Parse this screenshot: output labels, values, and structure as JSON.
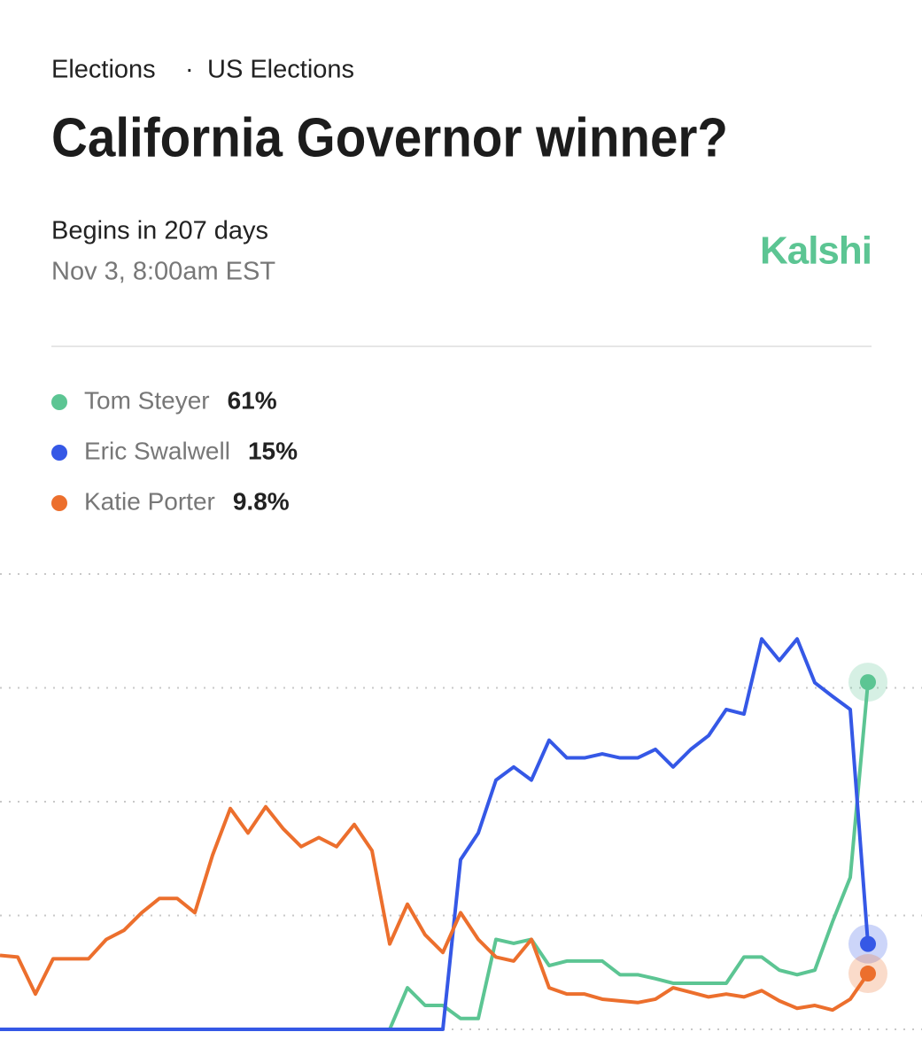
{
  "header": {
    "breadcrumb": [
      "Elections",
      "US Elections"
    ],
    "title": "California Governor winner?"
  },
  "schedule": {
    "begins": "Begins in 207 days",
    "date": "Nov 3, 8:00am EST"
  },
  "brand": "Kalshi",
  "chart_data": {
    "type": "line",
    "ylim": [
      0,
      80
    ],
    "yticks": [
      0,
      20,
      40,
      60,
      80
    ],
    "grid": true,
    "series": [
      {
        "name": "Tom Steyer",
        "color": "#5cc593",
        "last_label": "61%",
        "values": [
          0,
          0,
          0,
          0,
          0,
          0,
          0,
          0,
          0,
          0,
          0,
          0,
          0,
          0,
          0,
          0,
          0,
          0,
          0,
          0,
          0,
          0,
          0,
          7.3,
          4.2,
          4.2,
          1.9,
          1.9,
          15.8,
          15.1,
          15.8,
          11.2,
          12,
          12,
          12,
          9.6,
          9.6,
          8.9,
          8.1,
          8.1,
          8.1,
          8.1,
          12.7,
          12.7,
          10.4,
          9.6,
          10.4,
          18.9,
          26.7,
          61
        ]
      },
      {
        "name": "Eric Swalwell",
        "color": "#3558e6",
        "last_label": "15%",
        "values": [
          0,
          0,
          0,
          0,
          0,
          0,
          0,
          0,
          0,
          0,
          0,
          0,
          0,
          0,
          0,
          0,
          0,
          0,
          0,
          0,
          0,
          0,
          0,
          0,
          0,
          0,
          29.8,
          34.5,
          43.8,
          46.1,
          43.8,
          50.8,
          47.7,
          47.7,
          48.4,
          47.7,
          47.7,
          49.2,
          46.1,
          49.2,
          51.6,
          56.2,
          55.4,
          68.6,
          64.8,
          68.6,
          60.9,
          58.5,
          56.2,
          15
        ]
      },
      {
        "name": "Katie Porter",
        "color": "#ec6f2d",
        "last_label": "9.8%",
        "values": [
          13,
          12.7,
          6.2,
          12.4,
          12.4,
          12.4,
          15.8,
          17.4,
          20.5,
          23,
          23,
          20.5,
          30.6,
          38.8,
          34.5,
          39.1,
          35.2,
          32.1,
          33.7,
          32.1,
          36,
          31.4,
          15,
          22,
          16.6,
          13.5,
          20.5,
          15.8,
          12.7,
          12,
          15.8,
          7.3,
          6.2,
          6.2,
          5.3,
          5,
          4.7,
          5.3,
          7.3,
          6.5,
          5.7,
          6.2,
          5.7,
          6.8,
          5,
          3.7,
          4.2,
          3.4,
          5.3,
          9.8
        ]
      }
    ]
  }
}
